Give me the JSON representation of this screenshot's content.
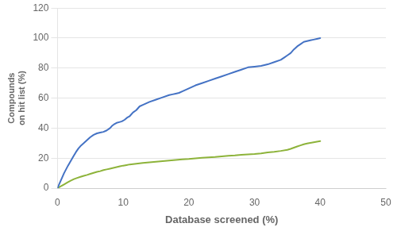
{
  "chart_data": {
    "type": "line",
    "xlabel": "Database screened (%)",
    "ylabel": "Compounds\non hit list (%)",
    "xlim": [
      0,
      50
    ],
    "ylim": [
      0,
      120
    ],
    "xticks": [
      0,
      10,
      20,
      30,
      40,
      50
    ],
    "yticks": [
      0,
      20,
      40,
      60,
      80,
      100,
      120
    ],
    "grid": "y",
    "series": [
      {
        "color": "#4472C4",
        "x": [
          0.0,
          0.2,
          0.4,
          0.6,
          0.8,
          1.0,
          1.3,
          1.6,
          2.0,
          2.4,
          2.8,
          3.2,
          3.6,
          4.0,
          4.5,
          5.0,
          5.5,
          6.0,
          6.5,
          7.0,
          7.5,
          8.0,
          8.3,
          8.6,
          9.0,
          9.4,
          9.8,
          10.2,
          10.6,
          11.0,
          11.5,
          12.0,
          12.5,
          13.0,
          14.0,
          15.0,
          16.0,
          17.0,
          17.5,
          18.0,
          18.5,
          19.0,
          20.0,
          21.0,
          22.0,
          23.0,
          24.0,
          25.0,
          26.0,
          27.0,
          28.0,
          29.0,
          30.0,
          31.0,
          32.0,
          33.0,
          34.0,
          34.5,
          35.0,
          35.5,
          36.0,
          36.5,
          37.0,
          37.5,
          38.0,
          38.5,
          39.0,
          39.5,
          40.0
        ],
        "values": [
          0.0,
          2.0,
          4.0,
          6.0,
          8.0,
          10.0,
          12.5,
          15.0,
          18.0,
          21.0,
          24.0,
          26.5,
          28.5,
          30.0,
          32.0,
          34.0,
          35.5,
          36.5,
          37.0,
          37.5,
          38.5,
          40.0,
          41.5,
          42.5,
          43.5,
          44.0,
          44.5,
          45.5,
          47.0,
          48.0,
          50.5,
          52.0,
          54.5,
          55.5,
          57.5,
          59.0,
          60.5,
          62.0,
          62.5,
          63.0,
          63.5,
          64.5,
          66.5,
          68.5,
          70.0,
          71.5,
          73.0,
          74.5,
          76.0,
          77.5,
          79.0,
          80.5,
          81.0,
          81.5,
          82.5,
          84.0,
          85.5,
          87.0,
          88.5,
          90.0,
          92.5,
          94.5,
          96.0,
          97.5,
          98.0,
          98.5,
          99.0,
          99.5,
          100.0
        ]
      },
      {
        "color": "#8DB33A",
        "x": [
          0.0,
          0.5,
          1.0,
          1.5,
          2.0,
          2.5,
          3.0,
          3.5,
          4.0,
          4.5,
          5.0,
          5.5,
          6.0,
          6.5,
          7.0,
          7.5,
          8.0,
          8.5,
          9.0,
          9.5,
          10.0,
          10.5,
          11.0,
          12.0,
          13.0,
          14.0,
          15.0,
          16.0,
          17.0,
          18.0,
          19.0,
          20.0,
          21.0,
          22.0,
          23.0,
          24.0,
          25.0,
          26.0,
          27.0,
          28.0,
          29.0,
          30.0,
          31.0,
          32.0,
          33.0,
          34.0,
          35.0,
          35.5,
          36.0,
          36.5,
          37.0,
          37.5,
          38.0,
          38.5,
          39.0,
          39.5,
          40.0
        ],
        "values": [
          0.0,
          1.2,
          2.5,
          3.8,
          5.0,
          6.0,
          6.8,
          7.5,
          8.2,
          8.8,
          9.5,
          10.2,
          10.8,
          11.3,
          12.0,
          12.5,
          13.0,
          13.5,
          14.0,
          14.5,
          15.0,
          15.4,
          15.8,
          16.3,
          16.8,
          17.2,
          17.6,
          18.0,
          18.4,
          18.8,
          19.2,
          19.5,
          19.9,
          20.2,
          20.5,
          20.8,
          21.2,
          21.5,
          21.8,
          22.2,
          22.5,
          22.8,
          23.2,
          23.8,
          24.2,
          24.8,
          25.5,
          26.2,
          27.0,
          27.8,
          28.5,
          29.2,
          29.8,
          30.2,
          30.6,
          31.0,
          31.3
        ]
      }
    ]
  }
}
